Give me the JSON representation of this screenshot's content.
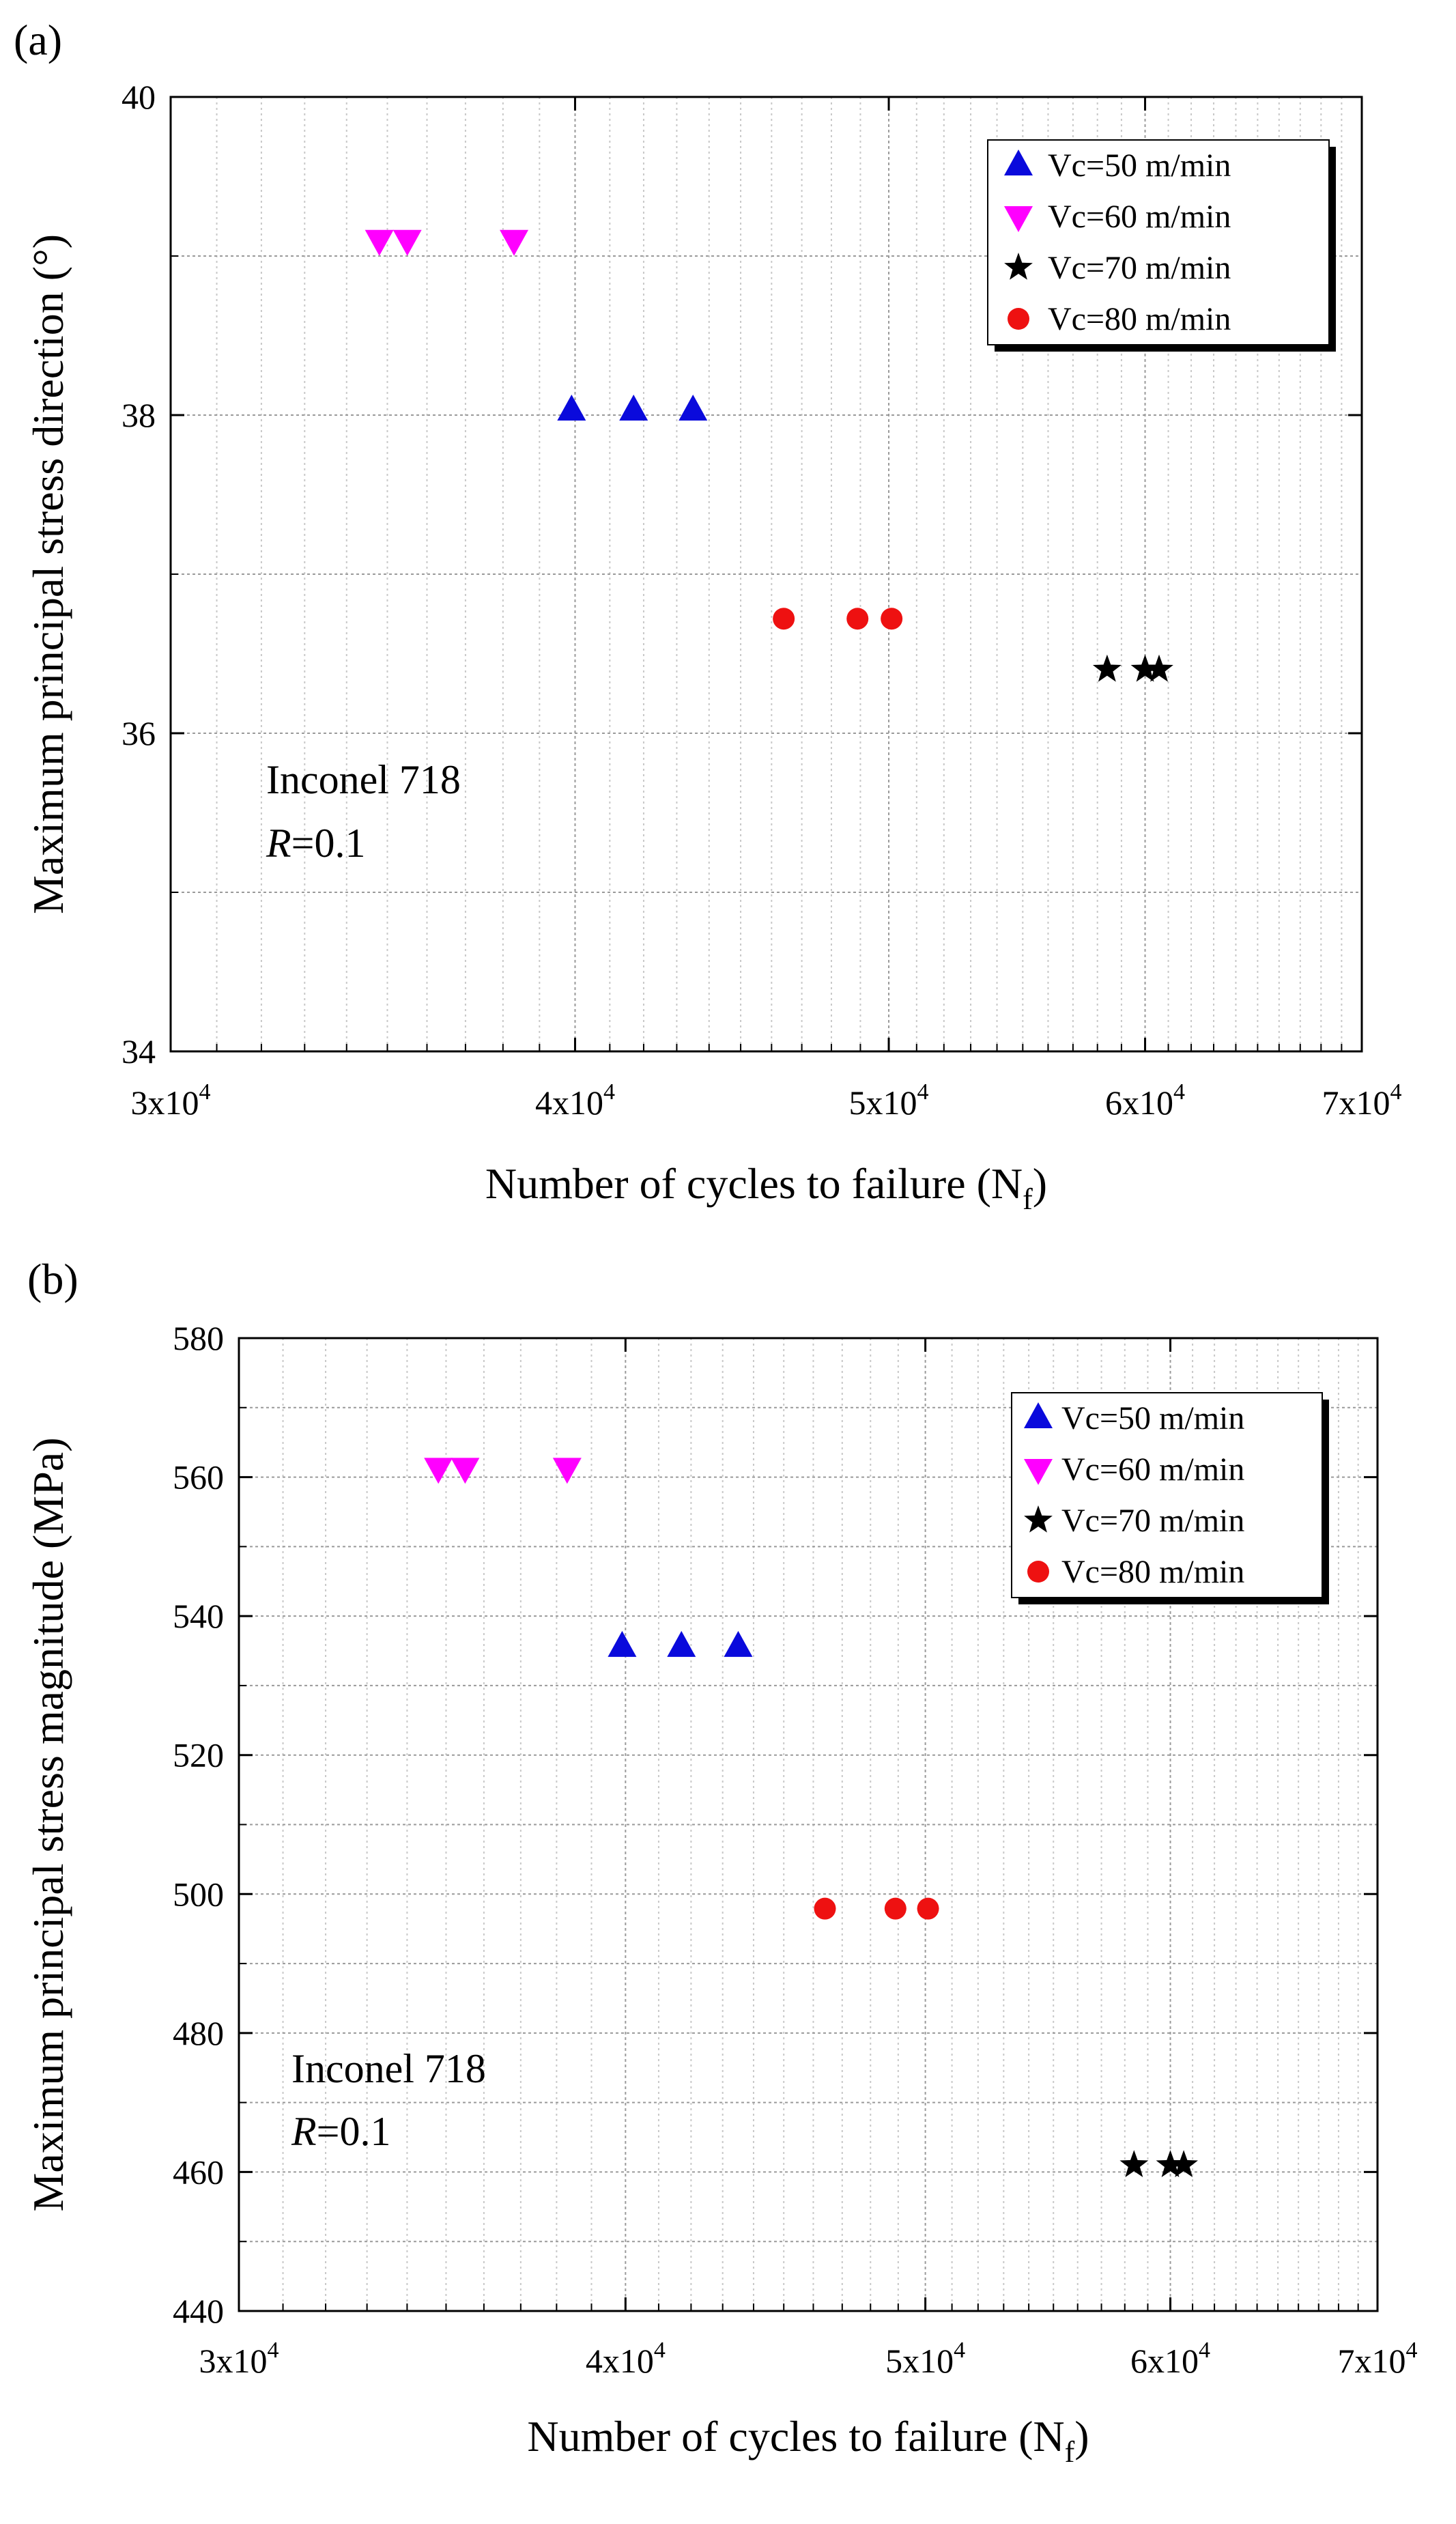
{
  "chart_data": [
    {
      "panel_label": "(a)",
      "type": "scatter",
      "x_scale": "log",
      "xlabel": "Number of cycles to failure (N",
      "xlabel_sub": "f",
      "xlabel_end": ")",
      "ylabel": "Maximum principal stress direction (°)",
      "xlim": [
        30000,
        70000
      ],
      "ylim": [
        34,
        40
      ],
      "x_ticks": [
        {
          "value": 30000,
          "mantissa": "3x10",
          "exp": "4"
        },
        {
          "value": 40000,
          "mantissa": "4x10",
          "exp": "4"
        },
        {
          "value": 50000,
          "mantissa": "5x10",
          "exp": "4"
        },
        {
          "value": 60000,
          "mantissa": "6x10",
          "exp": "4"
        },
        {
          "value": 70000,
          "mantissa": "7x10",
          "exp": "4"
        }
      ],
      "y_ticks": [
        {
          "value": 34,
          "label": "34"
        },
        {
          "value": 36,
          "label": "36"
        },
        {
          "value": 38,
          "label": "38"
        },
        {
          "value": 40,
          "label": "40"
        }
      ],
      "y_minor": [
        35,
        37,
        39
      ],
      "grid": true,
      "legend_position": "top-right",
      "annotation": {
        "line1": "Inconel 718",
        "r_italic": "R",
        "r_value": "=0.1"
      },
      "series": [
        {
          "name": "Vc=50 m/min",
          "marker": "triangle-up",
          "color": "#0a0adc",
          "x": [
            39900,
            41700,
            43500
          ],
          "y": [
            38.03,
            38.03,
            38.03
          ]
        },
        {
          "name": "Vc=60 m/min",
          "marker": "triangle-down",
          "color": "#ff00ff",
          "x": [
            34800,
            35500,
            38300
          ],
          "y": [
            39.1,
            39.1,
            39.1
          ]
        },
        {
          "name": "Vc=70 m/min",
          "marker": "star",
          "color": "#000000",
          "x": [
            58400,
            60000,
            60600
          ],
          "y": [
            36.4,
            36.4,
            36.4
          ]
        },
        {
          "name": "Vc=80 m/min",
          "marker": "circle",
          "color": "#ee1111",
          "x": [
            46400,
            48900,
            50100
          ],
          "y": [
            36.72,
            36.72,
            36.72
          ]
        }
      ]
    },
    {
      "panel_label": "(b)",
      "type": "scatter",
      "x_scale": "log",
      "xlabel": "Number of cycles to failure (N",
      "xlabel_sub": "f",
      "xlabel_end": ")",
      "ylabel": "Maximum principal stress magnitude (MPa)",
      "xlim": [
        30000,
        70000
      ],
      "ylim": [
        440,
        580
      ],
      "x_ticks": [
        {
          "value": 30000,
          "mantissa": "3x10",
          "exp": "4"
        },
        {
          "value": 40000,
          "mantissa": "4x10",
          "exp": "4"
        },
        {
          "value": 50000,
          "mantissa": "5x10",
          "exp": "4"
        },
        {
          "value": 60000,
          "mantissa": "6x10",
          "exp": "4"
        },
        {
          "value": 70000,
          "mantissa": "7x10",
          "exp": "4"
        }
      ],
      "y_ticks": [
        {
          "value": 440,
          "label": "440"
        },
        {
          "value": 460,
          "label": "460"
        },
        {
          "value": 480,
          "label": "480"
        },
        {
          "value": 500,
          "label": "500"
        },
        {
          "value": 520,
          "label": "520"
        },
        {
          "value": 540,
          "label": "540"
        },
        {
          "value": 560,
          "label": "560"
        },
        {
          "value": 580,
          "label": "580"
        }
      ],
      "y_minor": [
        450,
        470,
        490,
        510,
        530,
        550,
        570
      ],
      "grid": true,
      "legend_position": "top-right",
      "annotation": {
        "line1": "Inconel 718",
        "r_italic": "R",
        "r_value": "=0.1"
      },
      "series": [
        {
          "name": "Vc=50 m/min",
          "marker": "triangle-up",
          "color": "#0a0adc",
          "x": [
            39900,
            41700,
            43500
          ],
          "y": [
            535.6,
            535.6,
            535.6
          ]
        },
        {
          "name": "Vc=60 m/min",
          "marker": "triangle-down",
          "color": "#ff00ff",
          "x": [
            34800,
            35500,
            38300
          ],
          "y": [
            561.3,
            561.3,
            561.3
          ]
        },
        {
          "name": "Vc=70 m/min",
          "marker": "star",
          "color": "#000000",
          "x": [
            58400,
            60000,
            60600
          ],
          "y": [
            461.0,
            461.0,
            461.0
          ]
        },
        {
          "name": "Vc=80 m/min",
          "marker": "circle",
          "color": "#ee1111",
          "x": [
            46400,
            48900,
            50100
          ],
          "y": [
            497.9,
            497.9,
            497.9
          ]
        }
      ]
    }
  ]
}
